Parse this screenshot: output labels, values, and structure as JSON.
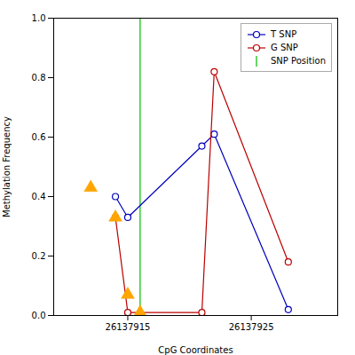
{
  "chart_data": {
    "type": "line",
    "xlabel": "CpG Coordinates",
    "ylabel": "Methylation Frequency",
    "xlim": [
      26137909,
      26137932
    ],
    "xticks": [
      26137915,
      26137925
    ],
    "ylim": [
      0,
      1.0
    ],
    "yticks": [
      {
        "value": 0.0,
        "label": "0.0"
      },
      0.2,
      0.4,
      0.6,
      0.8,
      {
        "value": 1.0,
        "label": "1.0"
      }
    ],
    "grid": false,
    "legend": "upper right",
    "series": [
      {
        "name": "T SNP",
        "type": "line",
        "marker": "circle",
        "color": "#0000BB",
        "x": [
          26137914,
          26137915,
          26137921,
          26137922,
          26137928
        ],
        "values": [
          0.4,
          0.33,
          0.57,
          0.61,
          0.02
        ]
      },
      {
        "name": "G SNP",
        "type": "line",
        "marker": "circle",
        "color": "#BB0000",
        "x": [
          26137914,
          26137915,
          26137921,
          26137922,
          26137928
        ],
        "values": [
          0.33,
          0.01,
          0.01,
          0.82,
          0.18
        ]
      },
      {
        "type": "scatter",
        "marker": "triangle",
        "color": "#FFA500",
        "x": [
          26137912,
          26137914,
          26137915,
          26137916
        ],
        "values": [
          0.43,
          0.33,
          0.07,
          0.01
        ]
      },
      {
        "name": "SNP Position",
        "type": "vline",
        "color": "#00BB00",
        "x": 26137916
      }
    ]
  }
}
